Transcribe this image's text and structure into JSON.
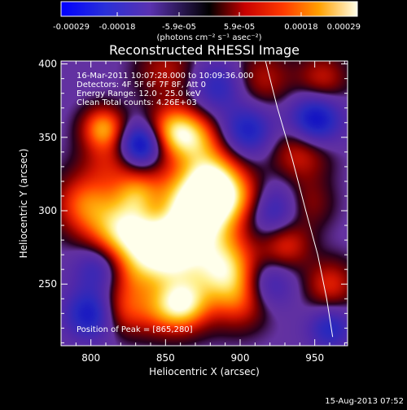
{
  "colorbar": {
    "tick_labels": [
      "-0.00029",
      "-0.00018",
      "-5.9e-05",
      "5.9e-05",
      "0.00018",
      "0.00029"
    ],
    "tick_values": [
      -0.00029,
      -0.00018,
      -5.9e-05,
      5.9e-05,
      0.00018,
      0.00029
    ],
    "range": [
      -0.00029,
      0.00029
    ],
    "units_label": "(photons cm⁻² s⁻¹ asec⁻²)"
  },
  "footer": {
    "timestamp": "15-Aug-2013 07:52"
  },
  "chart_data": {
    "type": "heatmap",
    "title": "Reconstructed RHESSI Image",
    "xlabel": "Heliocentric X (arcsec)",
    "ylabel": "Heliocentric Y (arcsec)",
    "xlim": [
      780,
      972
    ],
    "ylim": [
      208,
      402
    ],
    "x_ticks": [
      800,
      850,
      900,
      950
    ],
    "y_ticks": [
      250,
      300,
      350,
      400
    ],
    "grid": false,
    "annotations": [
      "16-Mar-2011 10:07:28.000 to 10:09:36.000",
      "Detectors: 4F 5F 6F 7F 8F, Att 0",
      "Energy Range: 12.0 - 25.0 keV",
      "Clean     Total counts: 4.26E+03"
    ],
    "peak_label": "Position of Peak = [865,280]",
    "peak": [
      865,
      280
    ],
    "limb": [
      [
        917,
        402
      ],
      [
        925,
        370
      ],
      [
        935,
        335
      ],
      [
        944,
        300
      ],
      [
        952,
        270
      ],
      [
        958,
        240
      ],
      [
        962,
        214
      ]
    ],
    "sources": [
      {
        "x": 860,
        "y": 285,
        "amp": 1.0,
        "w": 28
      },
      {
        "x": 848,
        "y": 270,
        "amp": 0.45,
        "w": 14
      },
      {
        "x": 868,
        "y": 300,
        "amp": 0.45,
        "w": 16
      },
      {
        "x": 820,
        "y": 285,
        "amp": 0.75,
        "w": 16
      },
      {
        "x": 795,
        "y": 305,
        "amp": 0.55,
        "w": 14
      },
      {
        "x": 812,
        "y": 335,
        "amp": 0.35,
        "w": 14
      },
      {
        "x": 808,
        "y": 357,
        "amp": 0.7,
        "w": 10
      },
      {
        "x": 855,
        "y": 355,
        "amp": 0.75,
        "w": 12
      },
      {
        "x": 870,
        "y": 350,
        "amp": 0.55,
        "w": 12
      },
      {
        "x": 880,
        "y": 325,
        "amp": 0.6,
        "w": 14
      },
      {
        "x": 885,
        "y": 310,
        "amp": 0.55,
        "w": 14
      },
      {
        "x": 905,
        "y": 308,
        "amp": 0.35,
        "w": 12
      },
      {
        "x": 890,
        "y": 260,
        "amp": 0.6,
        "w": 14
      },
      {
        "x": 900,
        "y": 240,
        "amp": 0.5,
        "w": 14
      },
      {
        "x": 862,
        "y": 236,
        "amp": 0.8,
        "w": 12
      },
      {
        "x": 845,
        "y": 232,
        "amp": 0.35,
        "w": 12
      },
      {
        "x": 820,
        "y": 232,
        "amp": 0.45,
        "w": 12
      },
      {
        "x": 930,
        "y": 278,
        "amp": 0.5,
        "w": 12
      },
      {
        "x": 940,
        "y": 340,
        "amp": 0.45,
        "w": 14
      },
      {
        "x": 945,
        "y": 305,
        "amp": 0.3,
        "w": 12
      },
      {
        "x": 960,
        "y": 250,
        "amp": 0.45,
        "w": 12
      },
      {
        "x": 955,
        "y": 390,
        "amp": 0.4,
        "w": 12
      },
      {
        "x": 915,
        "y": 390,
        "amp": 0.35,
        "w": 14
      },
      {
        "x": 850,
        "y": 395,
        "amp": 0.35,
        "w": 14
      },
      {
        "x": 830,
        "y": 312,
        "amp": 0.35,
        "w": 10
      },
      {
        "x": 825,
        "y": 255,
        "amp": 0.25,
        "w": 12
      },
      {
        "x": 800,
        "y": 230,
        "amp": -0.7,
        "w": 12
      },
      {
        "x": 806,
        "y": 262,
        "amp": -0.55,
        "w": 12
      },
      {
        "x": 833,
        "y": 345,
        "amp": -0.9,
        "w": 10
      },
      {
        "x": 905,
        "y": 355,
        "amp": -0.6,
        "w": 12
      },
      {
        "x": 950,
        "y": 362,
        "amp": -0.8,
        "w": 12
      },
      {
        "x": 920,
        "y": 300,
        "amp": -0.6,
        "w": 14
      },
      {
        "x": 918,
        "y": 250,
        "amp": -0.45,
        "w": 12
      },
      {
        "x": 960,
        "y": 220,
        "amp": -0.5,
        "w": 10
      },
      {
        "x": 885,
        "y": 385,
        "amp": -0.45,
        "w": 12
      },
      {
        "x": 845,
        "y": 300,
        "amp": -0.25,
        "w": 10
      }
    ]
  }
}
